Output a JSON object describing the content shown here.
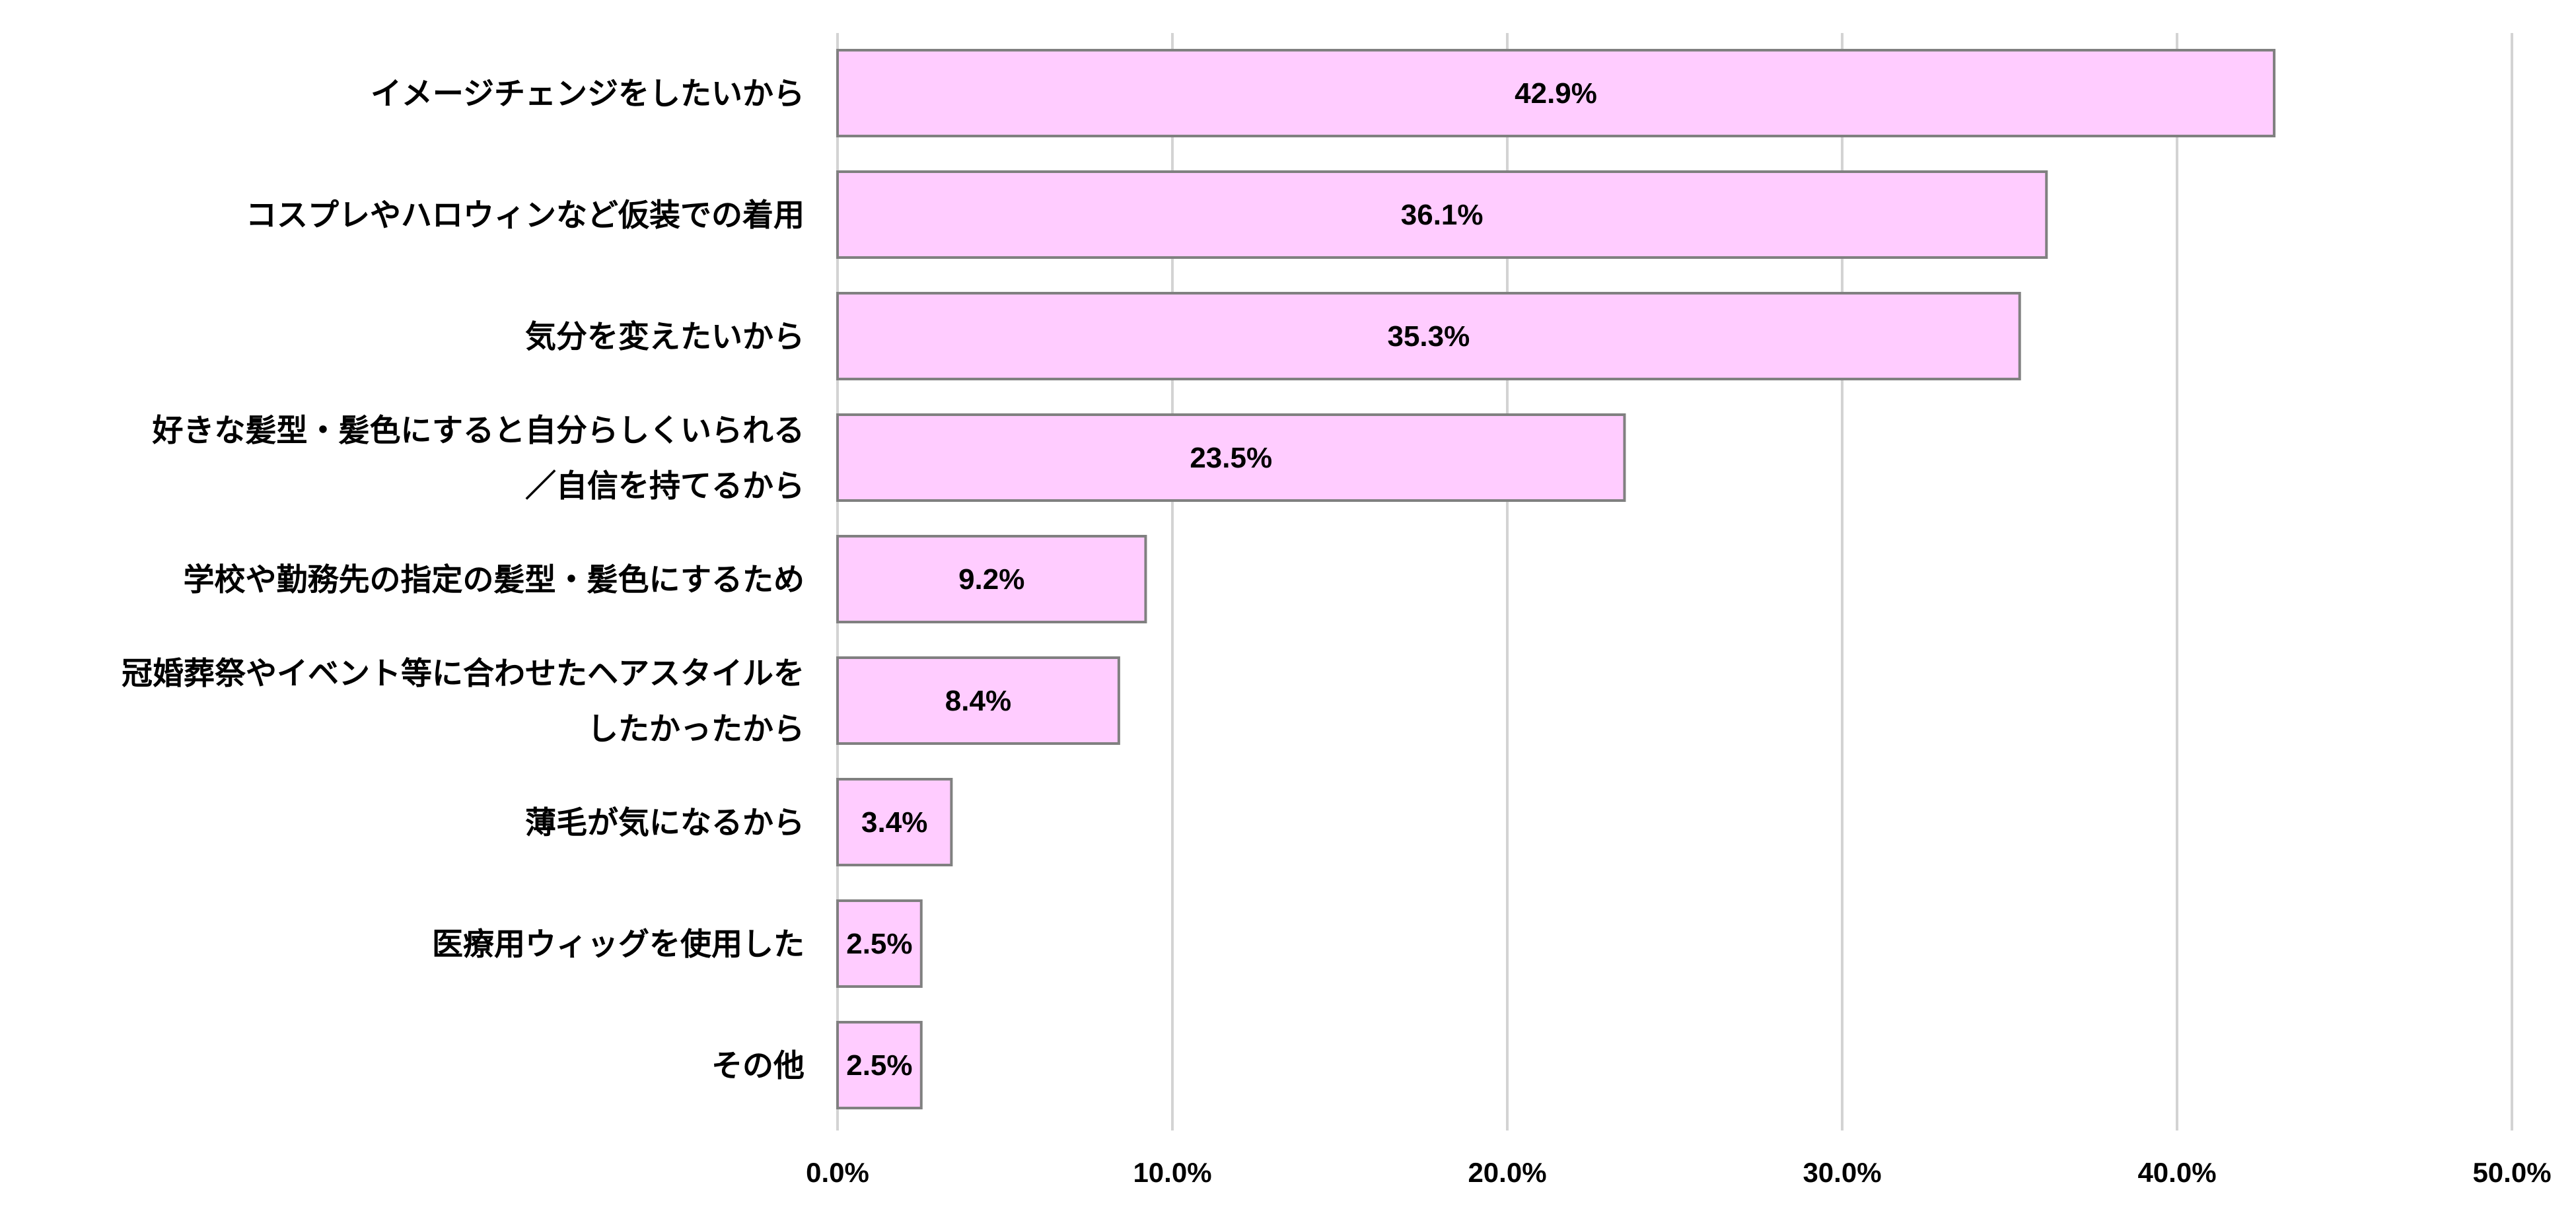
{
  "chart_data": {
    "type": "bar",
    "orientation": "horizontal",
    "categories": [
      [
        "イメージチェンジをしたいから"
      ],
      [
        "コスプレやハロウィンなど仮装での着用"
      ],
      [
        "気分を変えたいから"
      ],
      [
        "好きな髪型・髪色にすると自分らしくいられる",
        "／自信を持てるから"
      ],
      [
        "学校や勤務先の指定の髪型・髪色にするため"
      ],
      [
        "冠婚葬祭やイベント等に合わせたヘアスタイルを",
        "したかったから"
      ],
      [
        "薄毛が気になるから"
      ],
      [
        "医療用ウィッグを使用した"
      ],
      [
        "その他"
      ]
    ],
    "values": [
      42.9,
      36.1,
      35.3,
      23.5,
      9.2,
      8.4,
      3.4,
      2.5,
      2.5
    ],
    "data_labels": [
      "42.9%",
      "36.1%",
      "35.3%",
      "23.5%",
      "9.2%",
      "8.4%",
      "3.4%",
      "2.5%",
      "2.5%"
    ],
    "xlim": [
      0,
      50
    ],
    "x_ticks": [
      0,
      10,
      20,
      30,
      40,
      50
    ],
    "x_tick_labels": [
      "0.0%",
      "10.0%",
      "20.0%",
      "30.0%",
      "40.0%",
      "50.0%"
    ],
    "grid": true,
    "legend": "none",
    "colors": {
      "bar_fill": "#ffccff",
      "bar_stroke": "#808080",
      "grid": "#d3d3d3"
    }
  }
}
